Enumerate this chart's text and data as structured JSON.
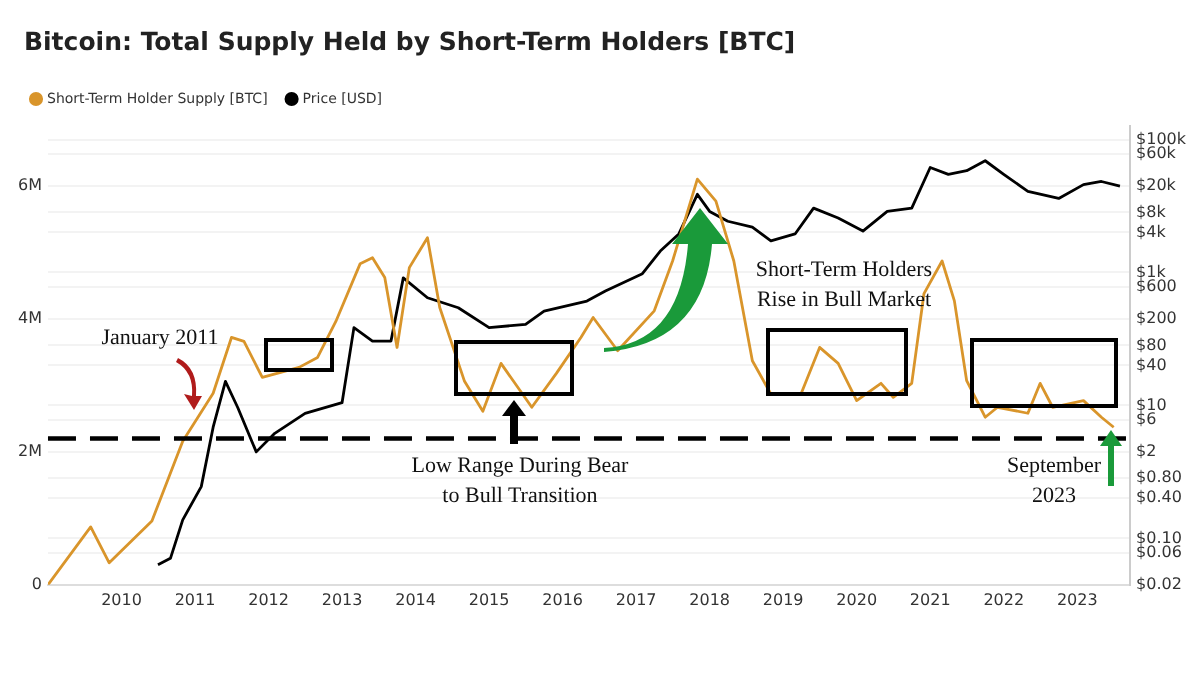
{
  "chart_data": {
    "type": "line",
    "title": "Bitcoin: Total Supply Held by Short-Term Holders [BTC]",
    "legend": "top left",
    "grid": "y",
    "marker": "none",
    "line_style": "solid",
    "log": "y2",
    "xlim": [
      "2009-01-01",
      "2023-09-20"
    ],
    "xticks": [
      "2010",
      "2011",
      "2012",
      "2013",
      "2014",
      "2015",
      "2016",
      "2017",
      "2018",
      "2019",
      "2020",
      "2021",
      "2022",
      "2023"
    ],
    "ylim": [
      0,
      6900000
    ],
    "yticks": [
      0,
      {
        "value": 2000000,
        "label": "2M"
      },
      {
        "value": 4000000,
        "label": "4M"
      },
      {
        "value": 6000000,
        "label": "6M"
      }
    ],
    "y2lim": [
      0.02,
      160000
    ],
    "y2ticks": [
      {
        "value": 0.02,
        "label": "$0.02"
      },
      {
        "value": 0.06,
        "label": "$0.06"
      },
      {
        "value": 0.1,
        "label": "$0.10"
      },
      {
        "value": 0.4,
        "label": "$0.40"
      },
      {
        "value": 0.8,
        "label": "$0.80"
      },
      {
        "value": 2,
        "label": "$2"
      },
      {
        "value": 6,
        "label": "$6"
      },
      {
        "value": 10,
        "label": "$10"
      },
      {
        "value": 40,
        "label": "$40"
      },
      {
        "value": 80,
        "label": "$80"
      },
      {
        "value": 200,
        "label": "$200"
      },
      {
        "value": 600,
        "label": "$600"
      },
      {
        "value": 1000,
        "label": "$1k"
      },
      {
        "value": 4000,
        "label": "$4k"
      },
      {
        "value": 8000,
        "label": "$8k"
      },
      {
        "value": 20000,
        "label": "$20k"
      },
      {
        "value": 60000,
        "label": "$60k"
      },
      {
        "value": 100000,
        "label": "$100k"
      }
    ],
    "series": [
      {
        "name": "Short-Term Holder Supply [BTC]",
        "color": "#d9952b",
        "x": [
          "2009-01",
          "2009-08",
          "2009-11",
          "2010-06",
          "2010-11",
          "2011-04",
          "2011-07",
          "2011-09",
          "2011-12",
          "2012-06",
          "2012-09",
          "2012-12",
          "2013-04",
          "2013-06",
          "2013-08",
          "2013-10",
          "2013-12",
          "2014-03",
          "2014-05",
          "2014-09",
          "2014-12",
          "2015-03",
          "2015-08",
          "2015-12",
          "2016-04",
          "2016-06",
          "2016-10",
          "2017-04",
          "2017-07",
          "2017-11",
          "2018-02",
          "2018-05",
          "2018-08",
          "2018-11",
          "2019-04",
          "2019-07",
          "2019-10",
          "2020-01",
          "2020-05",
          "2020-07",
          "2020-10",
          "2020-12",
          "2021-03",
          "2021-05",
          "2021-07",
          "2021-10",
          "2021-12",
          "2022-05",
          "2022-07",
          "2022-09",
          "2023-02",
          "2023-05",
          "2023-07"
        ],
        "values": [
          0,
          870000,
          330000,
          960000,
          2160000,
          2880000,
          3720000,
          3660000,
          3120000,
          3270000,
          3420000,
          3960000,
          4830000,
          4920000,
          4620000,
          3570000,
          4770000,
          5220000,
          4170000,
          3060000,
          2610000,
          3330000,
          2670000,
          3180000,
          3720000,
          4020000,
          3520000,
          4120000,
          4870000,
          6100000,
          5770000,
          4870000,
          3370000,
          2870000,
          2880000,
          3570000,
          3330000,
          2770000,
          3030000,
          2820000,
          3030000,
          4380000,
          4870000,
          4270000,
          3070000,
          2520000,
          2670000,
          2580000,
          3030000,
          2670000,
          2770000,
          2520000,
          2370000
        ]
      },
      {
        "name": "Price [USD]",
        "color": "#000000",
        "axis": "y2",
        "x": [
          "2010-07",
          "2010-09",
          "2010-11",
          "2011-02",
          "2011-04",
          "2011-06",
          "2011-08",
          "2011-11",
          "2012-02",
          "2012-07",
          "2013-01",
          "2013-03",
          "2013-06",
          "2013-09",
          "2013-11",
          "2014-03",
          "2014-08",
          "2015-01",
          "2015-07",
          "2015-10",
          "2016-05",
          "2016-08",
          "2017-02",
          "2017-05",
          "2017-08",
          "2017-11",
          "2018-01",
          "2018-04",
          "2018-08",
          "2018-11",
          "2019-03",
          "2019-06",
          "2019-10",
          "2020-02",
          "2020-06",
          "2020-10",
          "2021-01",
          "2021-04",
          "2021-07",
          "2021-10",
          "2022-01",
          "2022-05",
          "2022-10",
          "2023-02",
          "2023-05",
          "2023-08"
        ],
        "values": [
          0.04,
          0.05,
          0.19,
          0.6,
          4.7,
          23,
          9.3,
          2,
          3.8,
          7.6,
          11,
          148,
          93,
          93,
          830,
          417,
          295,
          148,
          166,
          263,
          372,
          525,
          960,
          2100,
          3800,
          15000,
          8300,
          5900,
          4800,
          3000,
          3800,
          9300,
          6600,
          4200,
          8300,
          9300,
          38000,
          30000,
          34000,
          48000,
          30000,
          16600,
          13000,
          21000,
          23400,
          20000
        ]
      }
    ],
    "ref_lines": [
      {
        "axis": "y",
        "value": 2200000,
        "color": "#000000",
        "line_style": "dashed"
      }
    ],
    "annotations": [
      "January 2011",
      "Low Range During Bear to Bull Transition",
      "Short-Term Holders Rise in Bull Market",
      "September 2023"
    ]
  }
}
